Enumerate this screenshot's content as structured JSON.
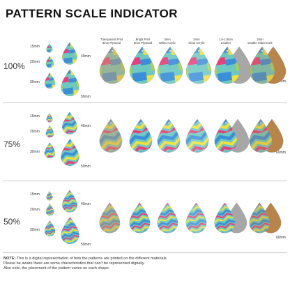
{
  "title": "PATTERN SCALE INDICATOR",
  "columns": [
    {
      "line1": "Transparent Print",
      "line2": "3mm Plywood"
    },
    {
      "line1": "Bright Print",
      "line2": "3mm Plywood"
    },
    {
      "line1": "3mm",
      "line2": "White Acrylic"
    },
    {
      "line1": "3mm",
      "line2": "Clear Acrylic"
    },
    {
      "line1": "1.6-1.8mm",
      "line2": "Leather"
    },
    {
      "line1": "2mm",
      "line2": "Double Sided Cork"
    }
  ],
  "sizes": {
    "s15": "15mm",
    "s20": "20mm",
    "s30": "30mm",
    "s40": "40mm",
    "s50": "50mm",
    "s60": "60mm"
  },
  "sections": [
    {
      "label": "100%"
    },
    {
      "label": "75%"
    },
    {
      "label": "50%"
    }
  ],
  "note": {
    "prefix": "NOTE:",
    "line1": " This is a digital representation of how the patterns are printed on the different materials.",
    "line2": "Please be aware there are some characteristics that can't be represented digitally.",
    "line3": "Also note, the placement of the pattern varies on each shape."
  },
  "colors": {
    "blue": "#3a8fd9",
    "teal": "#6cc8c0",
    "yellow": "#f2e13a",
    "pink": "#e83f7c",
    "lime": "#a8d44a",
    "plywood": "#c9a06a",
    "leather": "#a7a7a7",
    "cork": "#b8844a"
  }
}
